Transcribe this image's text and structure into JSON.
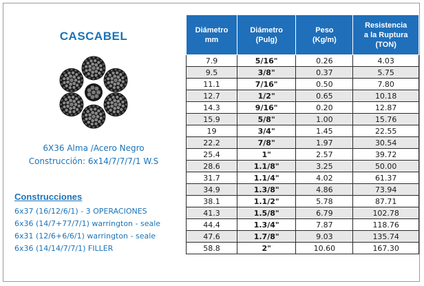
{
  "brand": {
    "title": "CASCABEL"
  },
  "spec": {
    "line1": "6X36 Alma /Acero Negro",
    "line2": "Construcción: 6x14/7/7/7/1 W.S"
  },
  "construcciones": {
    "title": "Construcciones",
    "items": [
      "6x37 (16/12/6/1) - 3 OPERACIONES",
      "6x36 (14/7+77/7/1) warrington - seale",
      "6x31 (12/6+6/6/1) warrington - seale",
      "6x36 (14/14/7/7/1) FILLER"
    ]
  },
  "table": {
    "headers": [
      [
        "Diámetro",
        "mm"
      ],
      [
        "Diámetro",
        "(Pulg)"
      ],
      [
        "Peso",
        "(Kg/m)"
      ],
      [
        "Resistencia",
        "a la Ruptura",
        "(TON)"
      ]
    ],
    "rows": [
      [
        "7.9",
        "5/16\"",
        "0.26",
        "4.03"
      ],
      [
        "9.5",
        "3/8\"",
        "0.37",
        "5.75"
      ],
      [
        "11.1",
        "7/16\"",
        "0.50",
        "7.80"
      ],
      [
        "12.7",
        "1/2\"",
        "0.65",
        "10.18"
      ],
      [
        "14.3",
        "9/16\"",
        "0.20",
        "12.87"
      ],
      [
        "15.9",
        "5/8\"",
        "1.00",
        "15.76"
      ],
      [
        "19",
        "3/4\"",
        "1.45",
        "22.55"
      ],
      [
        "22.2",
        "7/8\"",
        "1.97",
        "30.54"
      ],
      [
        "25.4",
        "1\"",
        "2.57",
        "39.72"
      ],
      [
        "28.6",
        "1.1/8\"",
        "3.25",
        "50.00"
      ],
      [
        "31.7",
        "1.1/4\"",
        "4.02",
        "61.37"
      ],
      [
        "34.9",
        "1.3/8\"",
        "4.86",
        "73.94"
      ],
      [
        "38.1",
        "1.1/2\"",
        "5.78",
        "87.71"
      ],
      [
        "41.3",
        "1.5/8\"",
        "6.79",
        "102.78"
      ],
      [
        "44.4",
        "1.3/4\"",
        "7.87",
        "118.76"
      ],
      [
        "47.6",
        "1.7/8\"",
        "9.03",
        "135.74"
      ],
      [
        "58.8",
        "2\"",
        "10.60",
        "167.30"
      ]
    ]
  },
  "colors": {
    "accent": "#1b73b8",
    "header_bg": "#1f6fba"
  },
  "icons": {
    "logo": "wire-rope-cross-section-icon"
  }
}
